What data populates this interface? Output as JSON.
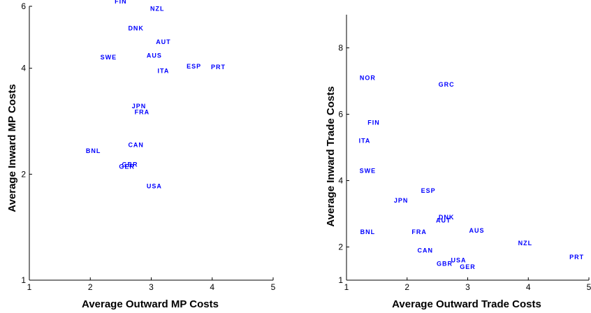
{
  "chart_data": [
    {
      "type": "scatter",
      "xlabel": "Average Outward MP Costs",
      "ylabel": "Average Inward MP Costs",
      "xlim": [
        1,
        5
      ],
      "ylim": [
        1,
        6
      ],
      "xticks": [
        1,
        2,
        3,
        4,
        5
      ],
      "yticks": [
        1,
        2,
        4,
        6
      ],
      "grid": false,
      "points": [
        {
          "label": "FIN",
          "x": 2.5,
          "y": 6.2
        },
        {
          "label": "NZL",
          "x": 3.1,
          "y": 5.9
        },
        {
          "label": "DNK",
          "x": 2.75,
          "y": 5.2
        },
        {
          "label": "AUT",
          "x": 3.2,
          "y": 4.75
        },
        {
          "label": "SWE",
          "x": 2.3,
          "y": 4.3
        },
        {
          "label": "AUS",
          "x": 3.05,
          "y": 4.35
        },
        {
          "label": "ESP",
          "x": 3.7,
          "y": 4.05
        },
        {
          "label": "PRT",
          "x": 4.1,
          "y": 4.03
        },
        {
          "label": "ITA",
          "x": 3.2,
          "y": 3.93
        },
        {
          "label": "JPN",
          "x": 2.8,
          "y": 3.12
        },
        {
          "label": "FRA",
          "x": 2.85,
          "y": 3.0
        },
        {
          "label": "CAN",
          "x": 2.75,
          "y": 2.42
        },
        {
          "label": "BNL",
          "x": 2.05,
          "y": 2.33
        },
        {
          "label": "GBR",
          "x": 2.65,
          "y": 2.13
        },
        {
          "label": "GER",
          "x": 2.6,
          "y": 2.1
        },
        {
          "label": "USA",
          "x": 3.05,
          "y": 1.85
        }
      ]
    },
    {
      "type": "scatter",
      "xlabel": "Average Outward Trade Costs",
      "ylabel": "Average Inward Trade Costs",
      "xlim": [
        1,
        5
      ],
      "ylim": [
        1,
        9
      ],
      "xticks": [
        1,
        2,
        3,
        4,
        5
      ],
      "yticks": [
        1,
        2,
        4,
        6,
        8
      ],
      "grid": false,
      "points": [
        {
          "label": "NOR",
          "x": 1.35,
          "y": 7.1
        },
        {
          "label": "GRC",
          "x": 2.65,
          "y": 6.9
        },
        {
          "label": "FIN",
          "x": 1.45,
          "y": 5.75
        },
        {
          "label": "ITA",
          "x": 1.3,
          "y": 5.2
        },
        {
          "label": "SWE",
          "x": 1.35,
          "y": 4.3
        },
        {
          "label": "ESP",
          "x": 2.35,
          "y": 3.7
        },
        {
          "label": "JPN",
          "x": 1.9,
          "y": 3.4
        },
        {
          "label": "DNK",
          "x": 2.65,
          "y": 2.9
        },
        {
          "label": "AUT",
          "x": 2.6,
          "y": 2.8
        },
        {
          "label": "BNL",
          "x": 1.35,
          "y": 2.45
        },
        {
          "label": "FRA",
          "x": 2.2,
          "y": 2.45
        },
        {
          "label": "AUS",
          "x": 3.15,
          "y": 2.5
        },
        {
          "label": "NZL",
          "x": 3.95,
          "y": 2.12
        },
        {
          "label": "CAN",
          "x": 2.3,
          "y": 1.9
        },
        {
          "label": "PRT",
          "x": 4.8,
          "y": 1.7
        },
        {
          "label": "USA",
          "x": 2.85,
          "y": 1.6
        },
        {
          "label": "GBR",
          "x": 2.62,
          "y": 1.5
        },
        {
          "label": "GER",
          "x": 3.0,
          "y": 1.4
        }
      ]
    }
  ]
}
